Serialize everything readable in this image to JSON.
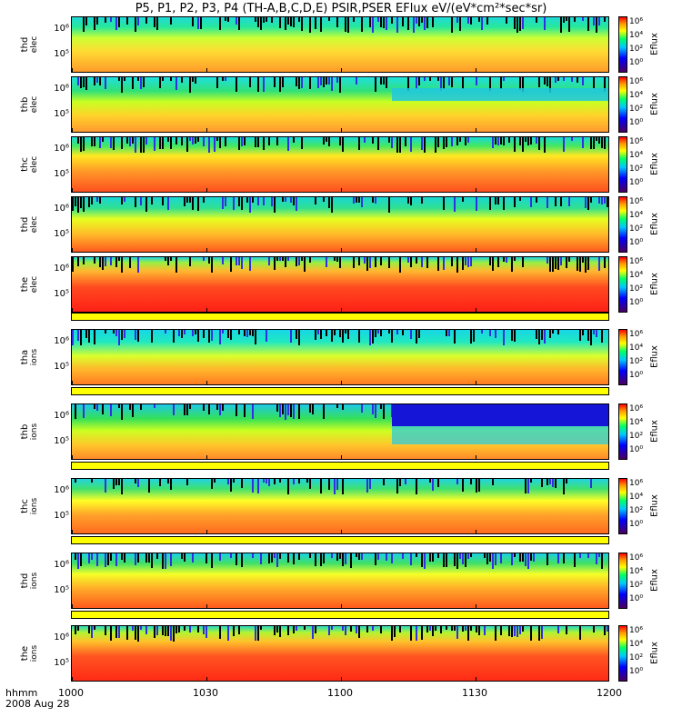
{
  "title": "P5, P1, P2, P3, P4 (TH-A,B,C,D,E) PSIR,PSER EFlux eV/(eV*cm²*sec*sr)",
  "time_axis": {
    "unit_label": "hhmm",
    "date_label": "2008 Aug 28",
    "ticks": [
      "1000",
      "1030",
      "1100",
      "1130",
      "1200"
    ]
  },
  "colorbar": {
    "label": "Eflux",
    "ticks": [
      "10⁶",
      "10⁴",
      "10²",
      "10⁰"
    ]
  },
  "panels": [
    {
      "probe": "thd",
      "species": "elec",
      "label1": "thd",
      "label2": "elec",
      "yticks": [
        "10⁶",
        "10⁵"
      ]
    },
    {
      "probe": "thb",
      "species": "elec",
      "label1": "thb",
      "label2": "elec",
      "yticks": [
        "10⁶",
        "10⁵"
      ]
    },
    {
      "probe": "thc",
      "species": "elec",
      "label1": "thc",
      "label2": "elec",
      "yticks": [
        "10⁶",
        "10⁵"
      ]
    },
    {
      "probe": "thd",
      "species": "elec",
      "label1": "thd",
      "label2": "elec",
      "yticks": [
        "10⁶",
        "10⁵"
      ]
    },
    {
      "probe": "the",
      "species": "elec",
      "label1": "the",
      "label2": "elec",
      "yticks": [
        "10⁶",
        "10⁵"
      ]
    },
    {
      "probe": "tha",
      "species": "ions",
      "label1": "tha",
      "label2": "ions",
      "yticks": [
        "10⁶",
        "10⁵"
      ]
    },
    {
      "probe": "thb",
      "species": "ions",
      "label1": "thb",
      "label2": "ions",
      "yticks": [
        "10⁶",
        "10⁵"
      ]
    },
    {
      "probe": "thc",
      "species": "ions",
      "label1": "thc",
      "label2": "ions",
      "yticks": [
        "10⁶",
        "10⁵"
      ]
    },
    {
      "probe": "thd",
      "species": "ions",
      "label1": "thd",
      "label2": "ions",
      "yticks": [
        "10⁶",
        "10⁵"
      ]
    },
    {
      "probe": "the",
      "species": "ions",
      "label1": "the",
      "label2": "ions",
      "yticks": [
        "10⁶",
        "10⁵"
      ]
    }
  ],
  "chart_data": {
    "type": "heatmap",
    "title": "P5, P1, P2, P3, P4 (TH-A,B,C,D,E) PSIR,PSER EFlux eV/(eV*cm²*sec*sr)",
    "x": [
      "1000",
      "1030",
      "1100",
      "1130",
      "1200"
    ],
    "xrange": [
      "1000",
      "1200"
    ],
    "colorbar_ticks": [
      "10⁰",
      "10²",
      "10⁴",
      "10⁶"
    ],
    "colorscale": [
      "#4a0060",
      "#0000ff",
      "#00c8ff",
      "#00ff66",
      "#ffff00",
      "#ff9900",
      "#ff0000"
    ],
    "panels": [
      "thd elec",
      "thb elec",
      "thc elec",
      "thd elec",
      "the elec",
      "tha ions",
      "thb ions",
      "thc ions",
      "thd ions",
      "the ions"
    ]
  }
}
